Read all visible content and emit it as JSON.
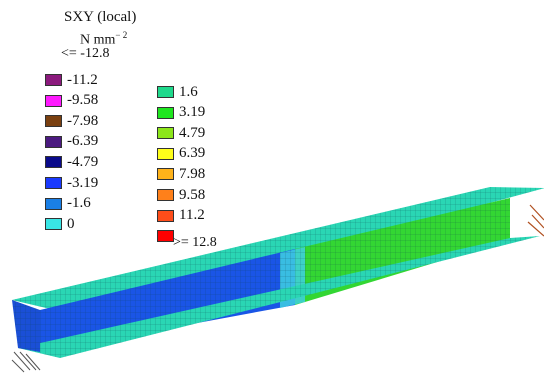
{
  "legend": {
    "title": "SXY (local)",
    "units_base": "N mm",
    "units_exp": "− 2",
    "min_label": "<= -12.8",
    "max_label": ">= 12.8",
    "left_items": [
      {
        "label": "-11.2",
        "color": "#8b1a7d"
      },
      {
        "label": "-9.58",
        "color": "#ff1aff"
      },
      {
        "label": "-7.98",
        "color": "#7a4010"
      },
      {
        "label": "-6.39",
        "color": "#4b1a80"
      },
      {
        "label": "-4.79",
        "color": "#0a0a8a"
      },
      {
        "label": "-3.19",
        "color": "#1a3aff"
      },
      {
        "label": "-1.6",
        "color": "#1a7fe6"
      },
      {
        "label": "0",
        "color": "#39e6e6"
      }
    ],
    "right_items": [
      {
        "label": "1.6",
        "color": "#1fd98c"
      },
      {
        "label": "3.19",
        "color": "#1fe61f"
      },
      {
        "label": "4.79",
        "color": "#8ce61a"
      },
      {
        "label": "6.39",
        "color": "#ffff1a"
      },
      {
        "label": "7.98",
        "color": "#ffb31a"
      },
      {
        "label": "9.58",
        "color": "#ff801a"
      },
      {
        "label": "11.2",
        "color": "#ff4d1a"
      },
      {
        "label": "",
        "color": "#ff0000"
      }
    ]
  },
  "model": {
    "flange_color": "#2ad6b4",
    "web_blue_color": "#1a55e6",
    "web_green_color": "#33d633",
    "web_cyan_color": "#3fd0e0",
    "mesh_color": "#0b3f4a"
  }
}
